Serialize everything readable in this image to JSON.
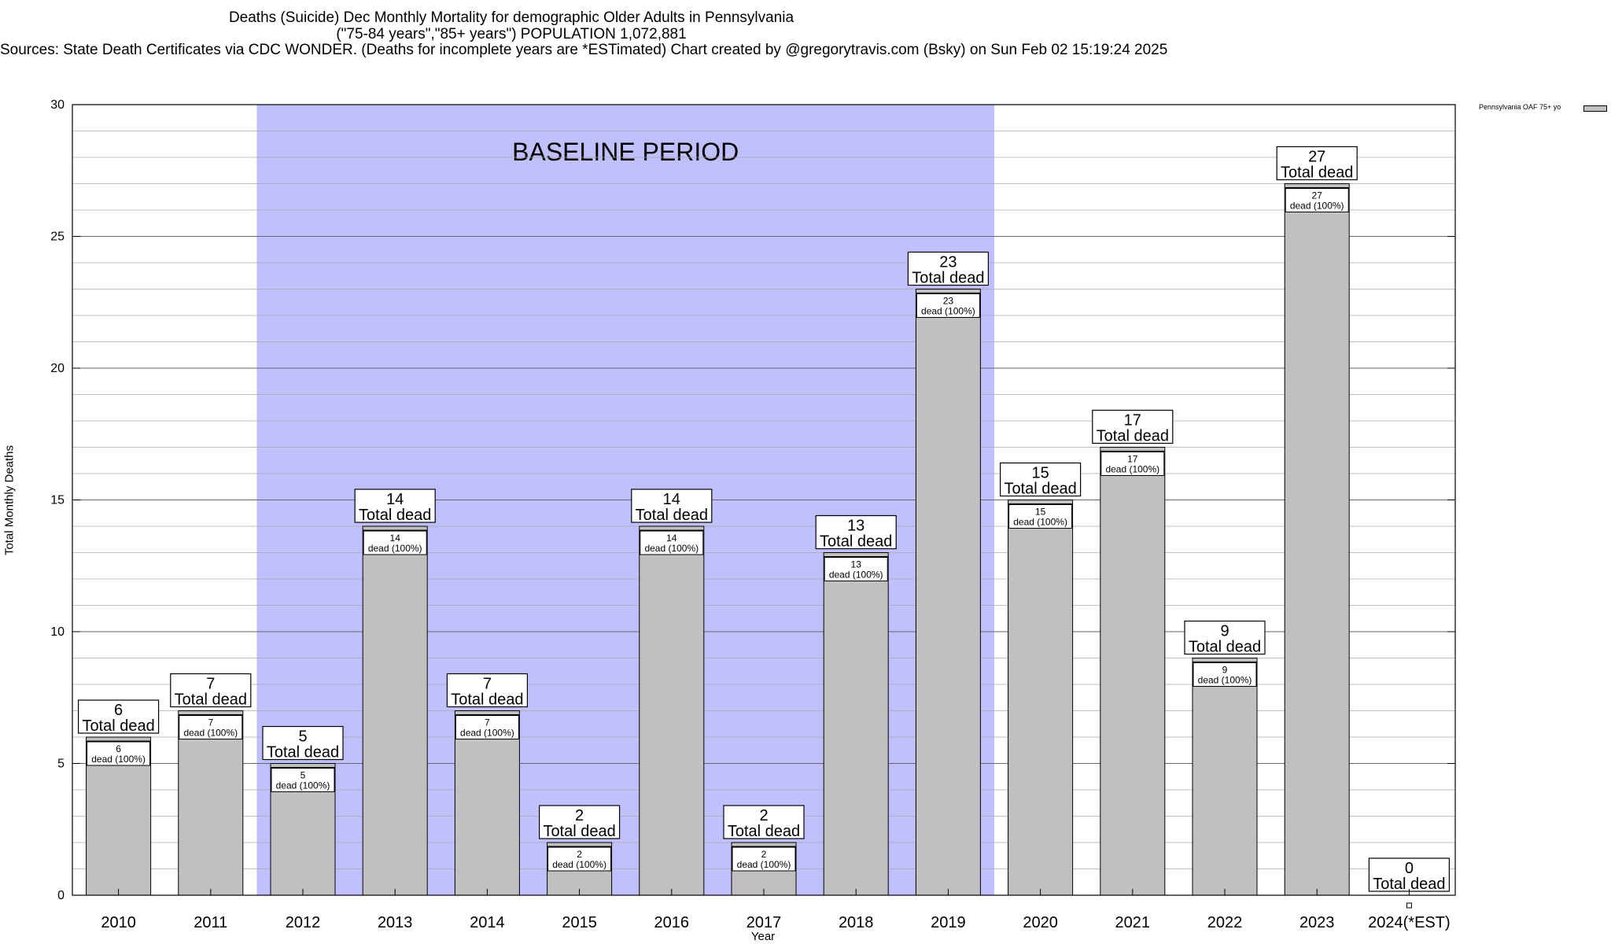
{
  "chart_data": {
    "type": "bar",
    "title_lines": [
      "Deaths (Suicide) Dec Monthly Mortality for demographic Older Adults in Pennsylvania",
      "(\"75-84 years\",\"85+ years\") POPULATION 1,072,881",
      "Sources: State Death Certificates via CDC WONDER. (Deaths for incomplete years are *ESTimated)                Chart created by @gregorytravis.com (Bsky) on Sun Feb 02 15:19:24 2025"
    ],
    "xlabel": "Year",
    "ylabel": "Total Monthly Deaths",
    "ylim": [
      0,
      30
    ],
    "yticks": [
      0,
      5,
      10,
      15,
      20,
      25,
      30
    ],
    "categories": [
      "2010",
      "2011",
      "2012",
      "2013",
      "2014",
      "2015",
      "2016",
      "2017",
      "2018",
      "2019",
      "2020",
      "2021",
      "2022",
      "2023",
      "2024(*EST)"
    ],
    "series": [
      {
        "name": "Pennsylvania OAF 75+ yo",
        "values": [
          6,
          7,
          5,
          14,
          7,
          2,
          14,
          2,
          13,
          23,
          15,
          17,
          9,
          27,
          0
        ],
        "color": "#c0c0c0"
      }
    ],
    "total_label": "Total dead",
    "inner_label": "dead (100%)",
    "baseline": {
      "label": "BASELINE PERIOD",
      "start_category": "2012",
      "end_category": "2019",
      "color": "#c0c0ff"
    },
    "grid": true,
    "legend_position": "top-right"
  }
}
